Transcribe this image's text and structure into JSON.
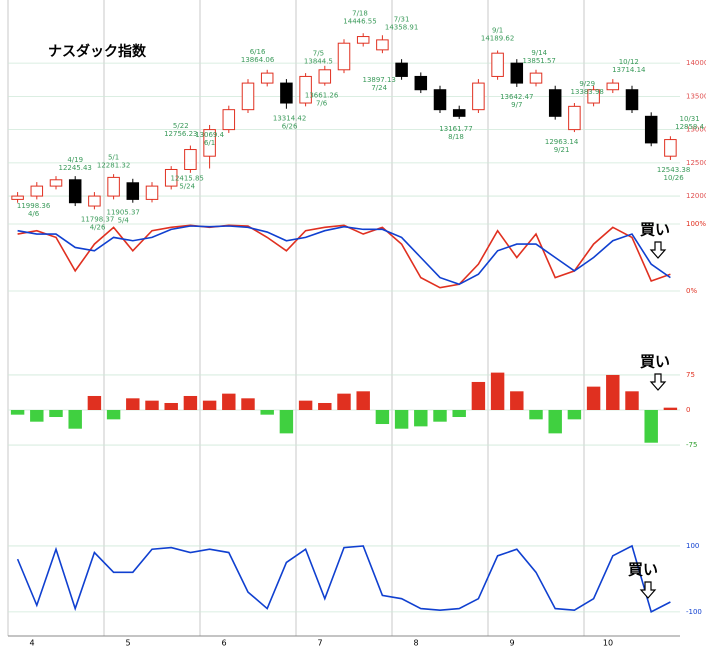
{
  "chart_data": [
    {
      "type": "candlestick",
      "title": "ナスダック指数",
      "up_color": "#e03020",
      "down_color": "#000000",
      "open": [
        11950,
        12000,
        12150,
        12245,
        11850,
        12000,
        12200,
        11950,
        12150,
        12400,
        12600,
        13000,
        13300,
        13700,
        13700,
        13400,
        13700,
        13900,
        14300,
        14200,
        14000,
        13800,
        13600,
        13300,
        13300,
        13800,
        14000,
        13700,
        13600,
        13000,
        13400,
        13600,
        13600,
        13200,
        12600
      ],
      "high": [
        12060,
        12210,
        12300,
        12300,
        12060,
        12330,
        12260,
        12210,
        12450,
        12760,
        13070,
        13360,
        13760,
        13900,
        13760,
        13850,
        13960,
        14360,
        14450,
        14420,
        14060,
        13860,
        13660,
        13360,
        13760,
        14190,
        14060,
        13900,
        13660,
        13400,
        13660,
        13760,
        13660,
        13260,
        12900
      ],
      "low": [
        11900,
        11950,
        12100,
        11850,
        11800,
        11950,
        11900,
        11905,
        12100,
        12350,
        12415,
        12950,
        13250,
        13650,
        13314,
        13350,
        13661,
        13850,
        14250,
        14150,
        13750,
        13550,
        13250,
        13161,
        13250,
        13750,
        13642,
        13650,
        13150,
        12963,
        13350,
        13550,
        13250,
        12750,
        12543
      ],
      "close": [
        12000,
        12150,
        12245,
        11900,
        12000,
        12281,
        11950,
        12150,
        12400,
        12700,
        13000,
        13300,
        13700,
        13850,
        13400,
        13800,
        13900,
        14300,
        14400,
        14350,
        13800,
        13600,
        13300,
        13200,
        13700,
        14150,
        13700,
        13850,
        13200,
        13350,
        13600,
        13700,
        13300,
        12800,
        12850
      ],
      "ylim": [
        11640,
        14950
      ],
      "yticks": [
        12000,
        12500,
        13000,
        13500,
        14000
      ],
      "grid": true,
      "annotations": [
        {
          "value": 11998.36,
          "date": "4/6",
          "pos": "below"
        },
        {
          "value": 12245.43,
          "date": "4/19",
          "pos": "above"
        },
        {
          "value": 11798.37,
          "date": "4/26",
          "pos": "below"
        },
        {
          "value": 12281.32,
          "date": "5/1",
          "pos": "above"
        },
        {
          "value": 11905.37,
          "date": "5/4",
          "pos": "below"
        },
        {
          "value": 12756.23,
          "date": "5/22",
          "pos": "above"
        },
        {
          "value": 12415.85,
          "date": "5/24",
          "pos": "below"
        },
        {
          "value": 13069.4,
          "date": "6/1",
          "pos": "below"
        },
        {
          "value": 13864.06,
          "date": "6/16",
          "pos": "above"
        },
        {
          "value": 13314.42,
          "date": "6/26",
          "pos": "below"
        },
        {
          "value": 13844.5,
          "date": "7/5",
          "pos": "above"
        },
        {
          "value": 13661.26,
          "date": "7/6",
          "pos": "below"
        },
        {
          "value": 14446.55,
          "date": "7/18",
          "pos": "above"
        },
        {
          "value": 13897.13,
          "date": "7/24",
          "pos": "below"
        },
        {
          "value": 14358.91,
          "date": "7/31",
          "pos": "above"
        },
        {
          "value": 13161.77,
          "date": "8/18",
          "pos": "below"
        },
        {
          "value": 14189.62,
          "date": "9/1",
          "pos": "above"
        },
        {
          "value": 13642.47,
          "date": "9/7",
          "pos": "below"
        },
        {
          "value": 13851.57,
          "date": "9/14",
          "pos": "above"
        },
        {
          "value": 12963.14,
          "date": "9/21",
          "pos": "below"
        },
        {
          "value": 13383.98,
          "date": "9/29",
          "pos": "above"
        },
        {
          "value": 13714.14,
          "date": "10/12",
          "pos": "above"
        },
        {
          "value": 12543.38,
          "date": "10/26",
          "pos": "below"
        },
        {
          "value": 12858.4,
          "date": "10/31",
          "pos": "above"
        }
      ]
    },
    {
      "type": "line",
      "annotation": "買い",
      "ylim": [
        0,
        100
      ],
      "yticks": [
        {
          "value": 0,
          "label": "0%"
        },
        {
          "value": 100,
          "label": "100%"
        }
      ],
      "grid": true,
      "series": [
        {
          "color": "#e03020",
          "values": [
            85,
            90,
            80,
            30,
            70,
            95,
            60,
            90,
            95,
            98,
            95,
            98,
            97,
            80,
            60,
            90,
            95,
            98,
            85,
            95,
            70,
            20,
            5,
            10,
            40,
            90,
            50,
            85,
            20,
            30,
            70,
            95,
            80,
            15,
            25
          ]
        },
        {
          "color": "#1040d0",
          "values": [
            90,
            85,
            85,
            65,
            60,
            80,
            75,
            80,
            92,
            97,
            96,
            97,
            95,
            88,
            75,
            80,
            90,
            96,
            92,
            92,
            80,
            50,
            20,
            10,
            25,
            60,
            70,
            70,
            50,
            30,
            50,
            75,
            85,
            40,
            20
          ]
        }
      ]
    },
    {
      "type": "bar",
      "annotation": "買い",
      "ylim": [
        -107,
        107
      ],
      "yticks": [
        -75,
        0,
        75
      ],
      "grid": true,
      "pos_color": "#e03020",
      "neg_color": "#40d040",
      "values": [
        -10,
        -25,
        -15,
        -40,
        30,
        -20,
        25,
        20,
        15,
        30,
        20,
        35,
        25,
        -10,
        -50,
        20,
        15,
        35,
        40,
        -30,
        -40,
        -35,
        -25,
        -15,
        60,
        80,
        40,
        -20,
        -50,
        -20,
        50,
        75,
        40,
        -70,
        5
      ]
    },
    {
      "type": "line",
      "annotation": "買い",
      "ylim": [
        -155,
        118
      ],
      "yticks": [
        -100,
        100
      ],
      "grid": true,
      "categories": [
        "4",
        null,
        null,
        null,
        null,
        "5",
        null,
        null,
        null,
        null,
        "6",
        null,
        null,
        null,
        null,
        "7",
        null,
        null,
        null,
        null,
        "8",
        null,
        null,
        null,
        null,
        "9",
        null,
        null,
        null,
        null,
        "10",
        null,
        null,
        null,
        null
      ],
      "series": [
        {
          "color": "#1040d0",
          "values": [
            60,
            -80,
            90,
            -90,
            80,
            20,
            20,
            90,
            95,
            80,
            90,
            80,
            -40,
            -90,
            50,
            90,
            -60,
            95,
            100,
            -50,
            -60,
            -90,
            -95,
            -90,
            -60,
            70,
            90,
            20,
            -90,
            -95,
            -60,
            70,
            100,
            -100,
            -70
          ]
        }
      ]
    }
  ]
}
